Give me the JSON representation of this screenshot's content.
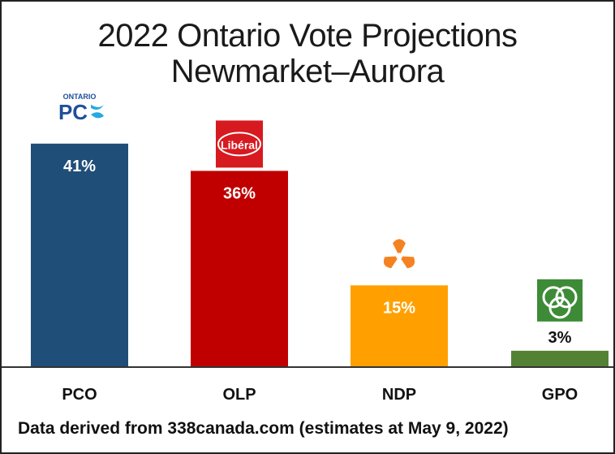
{
  "chart_data": {
    "type": "bar",
    "title": "2022 Ontario Vote Projections",
    "subtitle": "Newmarket–Aurora",
    "categories": [
      "PCO",
      "OLP",
      "NDP",
      "GPO"
    ],
    "values": [
      41,
      36,
      15,
      3
    ],
    "value_labels": [
      "41%",
      "36%",
      "15%",
      "3%"
    ],
    "colors": [
      "#1f4e79",
      "#c00000",
      "#ffa000",
      "#548235"
    ],
    "ylim": [
      0,
      45
    ],
    "grid": false,
    "logos": [
      {
        "name": "pc-logo",
        "text_top": "ONTARIO",
        "text_main": "PC"
      },
      {
        "name": "liberal-logo",
        "text": "Libéral"
      },
      {
        "name": "ndp-logo"
      },
      {
        "name": "green-logo"
      }
    ]
  },
  "footer": "Data derived from 338canada.com (estimates at May 9, 2022)"
}
